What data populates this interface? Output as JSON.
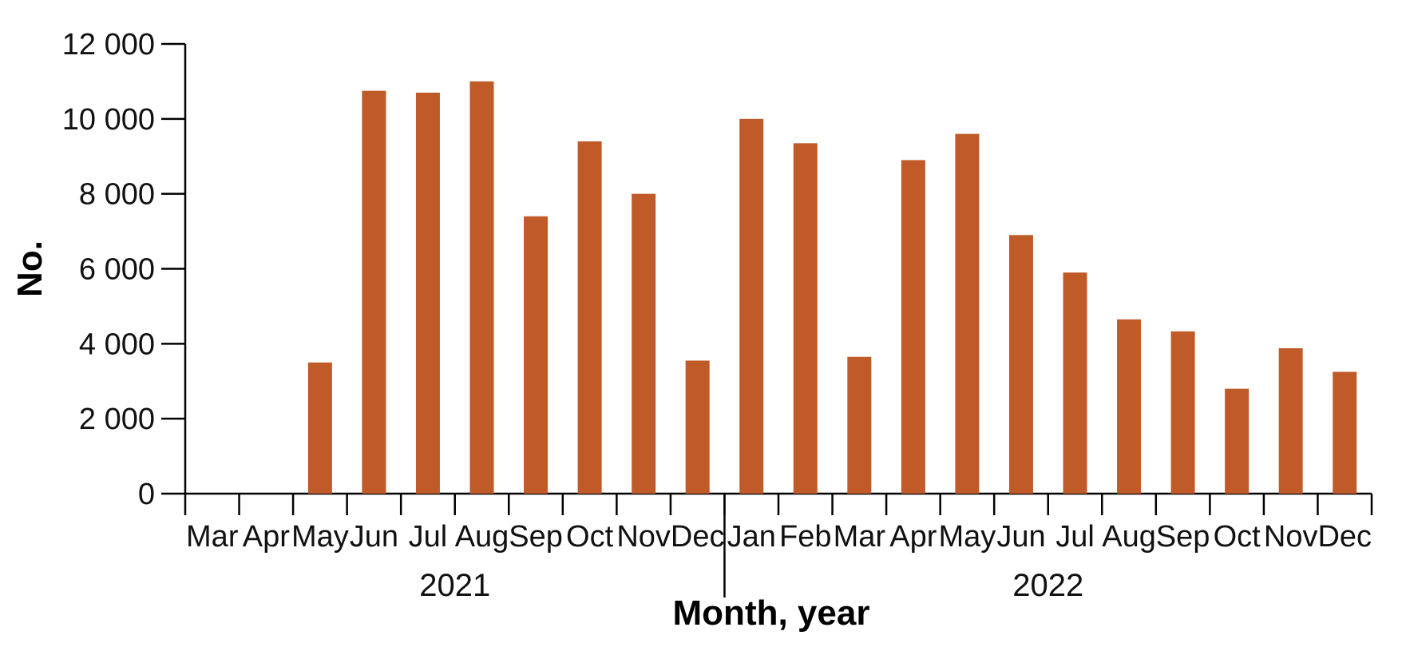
{
  "chart_data": {
    "type": "bar",
    "categories": [
      "Mar",
      "Apr",
      "May",
      "Jun",
      "Jul",
      "Aug",
      "Sep",
      "Oct",
      "Nov",
      "Dec",
      "Jan",
      "Feb",
      "Mar",
      "Apr",
      "May",
      "Jun",
      "Jul",
      "Aug",
      "Sep",
      "Oct",
      "Nov",
      "Dec"
    ],
    "years": [
      {
        "label": "2021",
        "start_index": 0,
        "end_index": 9
      },
      {
        "label": "2022",
        "start_index": 10,
        "end_index": 21
      }
    ],
    "values": [
      0,
      0,
      3500,
      10750,
      10700,
      11000,
      7400,
      9400,
      8000,
      3550,
      10000,
      9350,
      3650,
      8900,
      9600,
      6900,
      5900,
      4650,
      4330,
      2800,
      3880,
      3250
    ],
    "y_ticks": [
      {
        "value": 0,
        "label": "0"
      },
      {
        "value": 2000,
        "label": "2 000"
      },
      {
        "value": 4000,
        "label": "4 000"
      },
      {
        "value": 6000,
        "label": "6 000"
      },
      {
        "value": 8000,
        "label": "8 000"
      },
      {
        "value": 10000,
        "label": "10 000"
      },
      {
        "value": 12000,
        "label": "12 000"
      }
    ],
    "ylim": [
      0,
      12000
    ],
    "xlabel": "Month, year",
    "ylabel": "No.",
    "bar_color": "#C05A28",
    "grid": false,
    "legend": "none"
  }
}
